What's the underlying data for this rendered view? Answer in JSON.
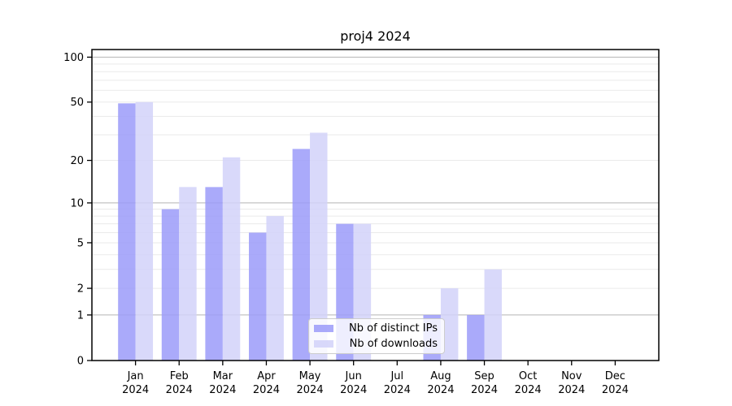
{
  "chart_data": {
    "type": "bar",
    "title": "proj4 2024",
    "xlabel": "",
    "ylabel": "",
    "year": "2024",
    "categories": [
      "Jan",
      "Feb",
      "Mar",
      "Apr",
      "May",
      "Jun",
      "Jul",
      "Aug",
      "Sep",
      "Oct",
      "Nov",
      "Dec"
    ],
    "series": [
      {
        "name": "Nb of distinct IPs",
        "color": "#9b9bf9",
        "values": [
          49,
          9,
          13,
          6,
          24,
          7,
          0,
          1,
          1,
          0,
          0,
          0
        ]
      },
      {
        "name": "Nb of downloads",
        "color": "#d2d2f9",
        "values": [
          50,
          13,
          21,
          8,
          31,
          7,
          0,
          2,
          3,
          0,
          0,
          0
        ]
      }
    ],
    "y_axis": {
      "scale": "log10(1+v)",
      "tick_labels": [
        0,
        1,
        2,
        5,
        10,
        20,
        50,
        100
      ],
      "range": [
        0,
        113
      ]
    },
    "grid": {
      "major_lines": [
        1,
        10,
        100
      ],
      "minor_lines": [
        2,
        3,
        4,
        5,
        6,
        7,
        8,
        9,
        20,
        30,
        40,
        50,
        60,
        70,
        80,
        90
      ]
    },
    "legend_position": "bottom-center",
    "colors": {
      "grid_major": "#b5b5b5",
      "grid_minor": "#eaeaea",
      "spine": "#000000",
      "text": "#000000",
      "bar_opacity": 0.85
    }
  }
}
